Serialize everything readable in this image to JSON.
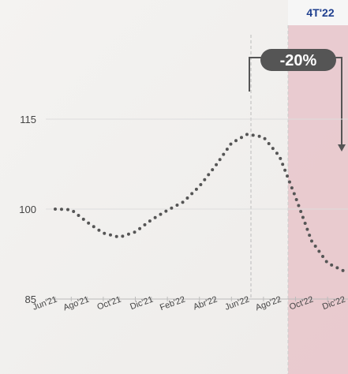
{
  "chart_data": {
    "type": "line",
    "categories": [
      "Jun'21",
      null,
      "Ago'21",
      null,
      "Oct'21",
      null,
      "Dic'21",
      null,
      "Feb'22",
      null,
      "Abr'22",
      null,
      "Jun'22",
      null,
      "Ago'22",
      null,
      "Oct'22",
      null,
      "Dic'22"
    ],
    "series": [
      {
        "name": null,
        "color": "#555555",
        "values": [
          100,
          99.9,
          97.8,
          96,
          95.3,
          96.2,
          98.2,
          99.8,
          101.2,
          103.8,
          107.2,
          111,
          112.5,
          112,
          108.8,
          102,
          94.7,
          91,
          89.7
        ]
      }
    ],
    "ylim": [
      85,
      125
    ],
    "yticks": [
      85,
      100,
      115
    ],
    "grid": true,
    "period_label": "4T'22",
    "change_label": "-20%"
  }
}
